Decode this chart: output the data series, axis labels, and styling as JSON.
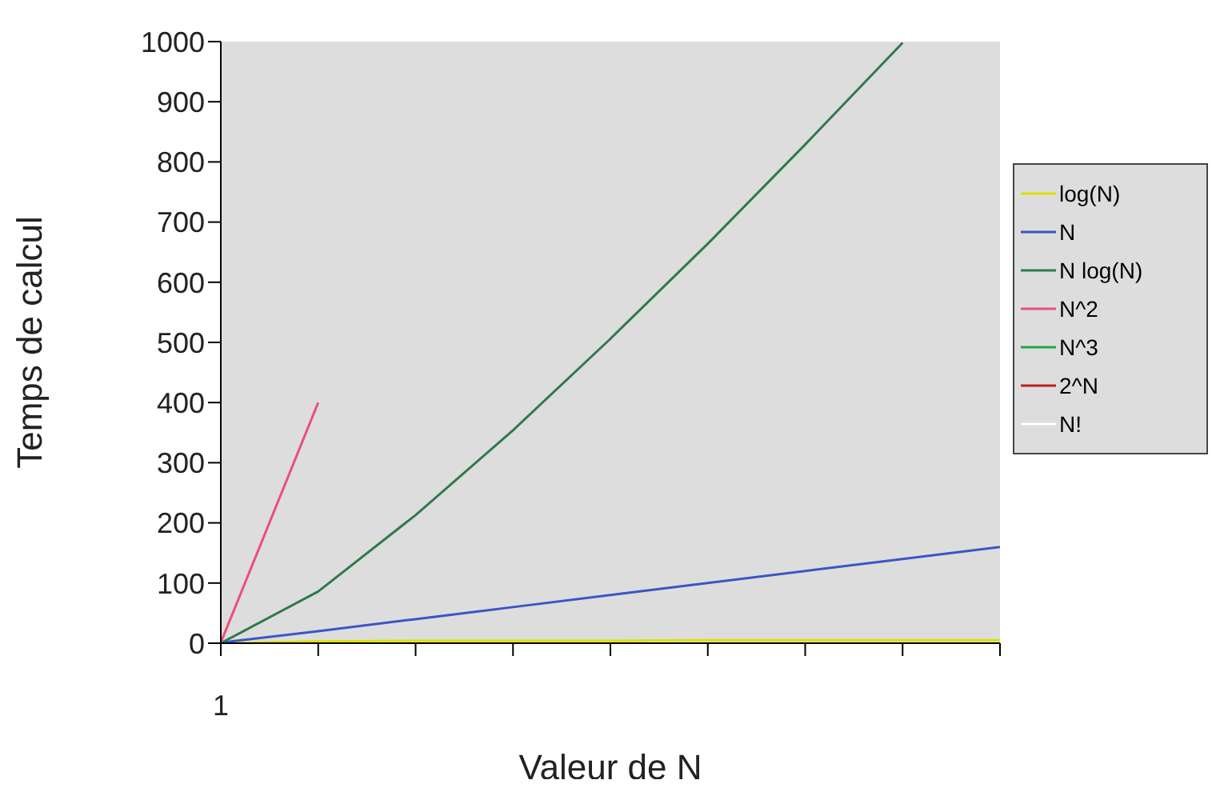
{
  "chart_data": {
    "type": "line",
    "xlabel": "Valeur de N",
    "ylabel": "Temps de calcul",
    "categories": [
      "1",
      null,
      null,
      null,
      null,
      null,
      null,
      null,
      null
    ],
    "series": [
      {
        "name": "log(N)",
        "color": "#e0e000",
        "values": [
          0,
          3,
          4,
          4,
          4,
          5,
          5,
          5,
          5
        ]
      },
      {
        "name": "N",
        "color": "#3a55c8",
        "values": [
          1,
          20,
          40,
          60,
          80,
          100,
          120,
          140,
          160
        ]
      },
      {
        "name": "N log(N)",
        "color": "#2f7a4a",
        "values": [
          0,
          86,
          213,
          354,
          506,
          664,
          829,
          998,
          null
        ]
      },
      {
        "name": "N^2",
        "color": "#e8507a",
        "values": [
          1,
          400,
          null,
          null,
          null,
          null,
          null,
          null,
          null
        ]
      },
      {
        "name": "N^3",
        "color": "#22a844",
        "values": [
          null,
          null,
          null,
          null,
          null,
          null,
          null,
          null,
          null
        ]
      },
      {
        "name": "2^N",
        "color": "#c02020",
        "values": [
          null,
          null,
          null,
          null,
          null,
          null,
          null,
          null,
          null
        ]
      },
      {
        "name": "N!",
        "color": "#ffffff",
        "values": [
          null,
          null,
          null,
          null,
          null,
          null,
          null,
          null,
          null
        ]
      }
    ],
    "ylim": [
      0,
      1000
    ],
    "yticks": [
      0,
      100,
      200,
      300,
      400,
      500,
      600,
      700,
      800,
      900,
      1000
    ],
    "grid": false,
    "legend": "right",
    "marker": "none",
    "line_style": "solid"
  }
}
